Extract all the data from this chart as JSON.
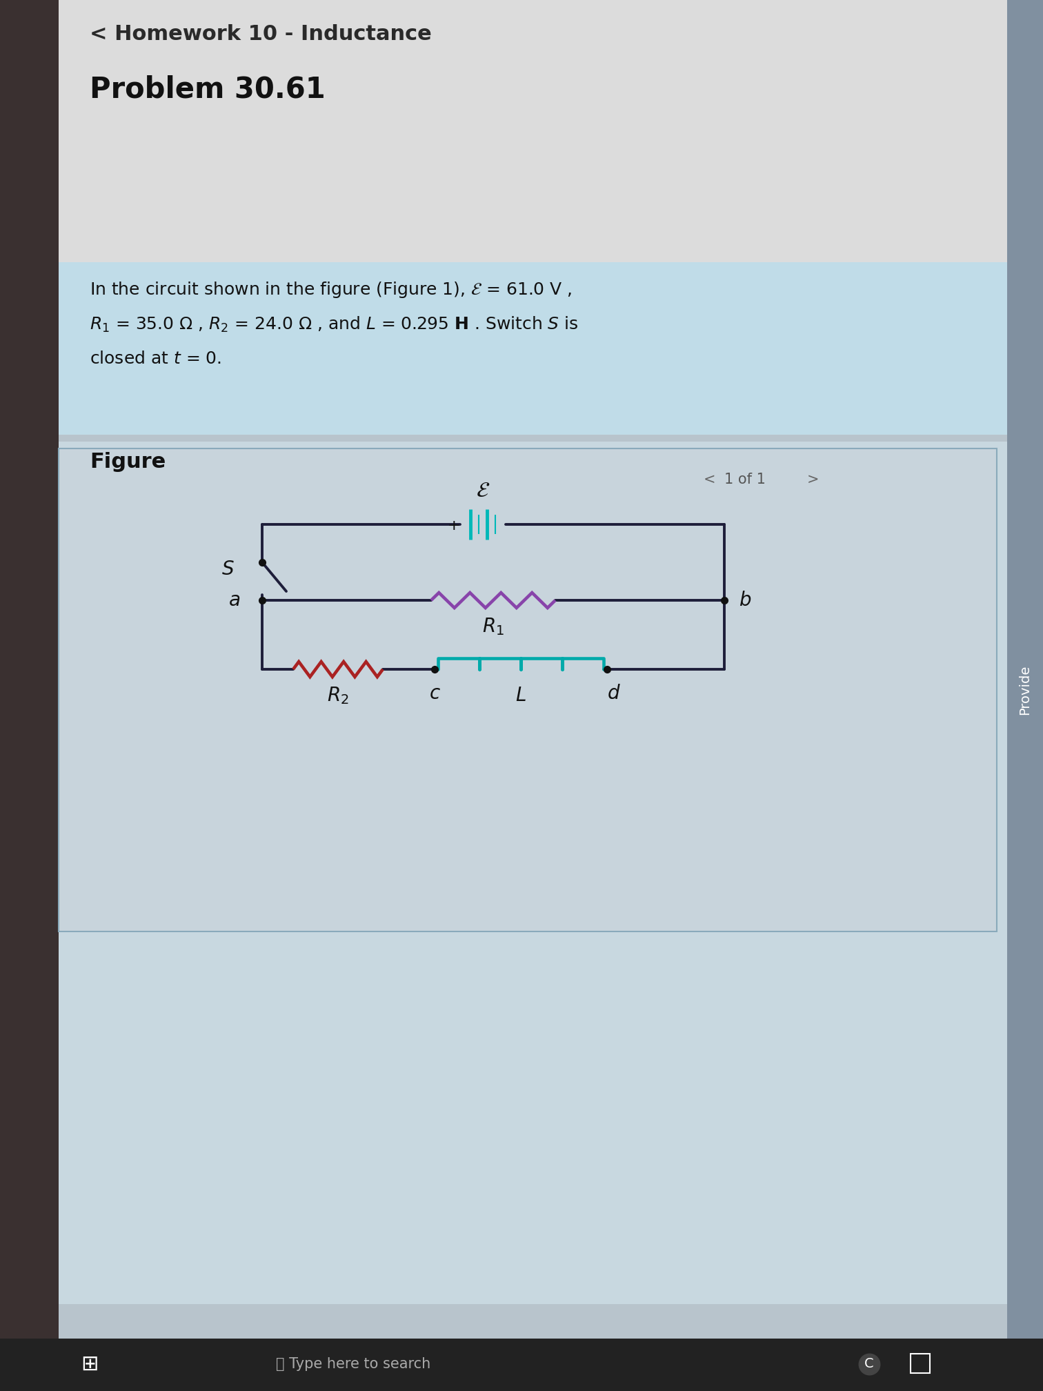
{
  "title_nav": "< Homework 10 - Inductance",
  "problem": "Problem 30.61",
  "figure_label": "Figure",
  "page_indicator": "1 of 1",
  "outer_bg": "#b8c4cc",
  "left_dark_panel_color": "#3a3030",
  "top_panel_bg": "#d8d8d8",
  "text_box_bg": "#c0dce8",
  "figure_panel_bg": "#c8d8e0",
  "figure_panel_border": "#8aaabb",
  "circuit_line_color": "#1e1e3a",
  "battery_color": "#00b8b8",
  "R1_color": "#8844aa",
  "R2_color": "#aa2222",
  "L_color": "#00aaaa",
  "node_color": "#111111",
  "taskbar_color": "#222222",
  "provide_bg": "#8090a0"
}
